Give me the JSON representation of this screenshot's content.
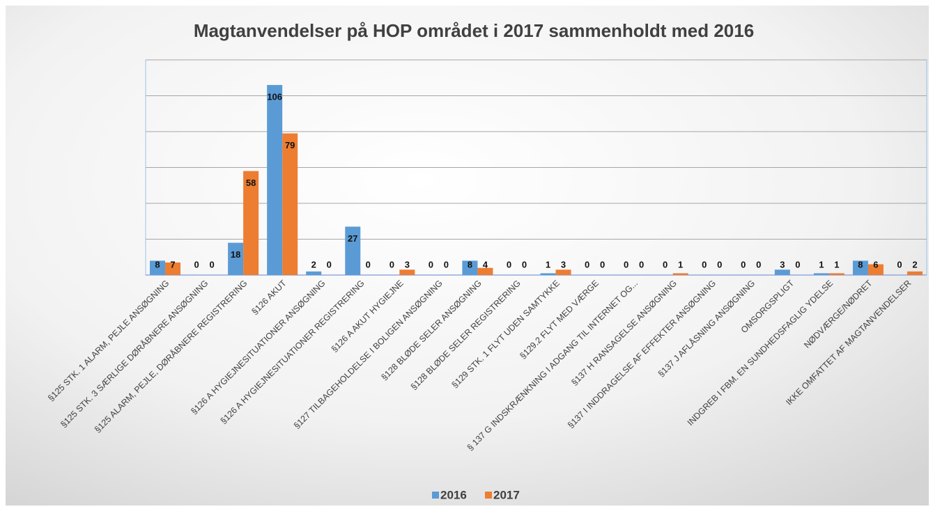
{
  "chart_data": {
    "type": "bar",
    "title": "Magtanvendelser på HOP området i 2017 sammenholdt med 2016",
    "categories": [
      "§125 STK. 1 ALARM, PEJLE ANSØGNING",
      "§125 STK. 3 SÆRLIGE DØRÅBNERE ANSØGNING",
      "§125 ALARM, PEJLE, DØRÅBNERE REGISTRERING",
      "§126 AKUT",
      "§126 A HYGIEJNESITUATIONER ANSØGNING",
      "§126 A HYGIEJNESITUATIONER REGISTRERING",
      "§126 A AKUT HYGIEJNE",
      "§127 TILBAGEHOLDELSE I BOLIGEN ANSØGNING",
      "§128 BLØDE SELER ANSØGNING",
      "§128 BLØDE SELER REGISTRERING",
      "§129 STK. 1 FLYT UDEN SAMTYKKE",
      "§129.2 FLYT MED VÆRGE",
      "§ 137 G INDSKRÆNKNING I ADGANG TIL INTERNET OG...",
      "§137 H RANSAGELSE ANSØGNING",
      "§137 I INDDRAGELSE AF EFFEKTER ANSØGNING",
      "§137 J AFLÅSNING ANSØGNING",
      "OMSORGSPLIGT",
      "INDGREB I FBM. EN SUNDHEDSFAGLIG YDELSE",
      "NØDVÆRGE/NØDRET",
      "IKKE OMFATTET AF MAGTANVENDELSER"
    ],
    "series": [
      {
        "name": "2016",
        "color": "#5b9bd5",
        "values": [
          8,
          0,
          18,
          106,
          2,
          27,
          0,
          0,
          8,
          0,
          1,
          0,
          0,
          0,
          0,
          0,
          3,
          1,
          8,
          0
        ]
      },
      {
        "name": "2017",
        "color": "#ed7d31",
        "values": [
          7,
          0,
          58,
          79,
          0,
          0,
          3,
          0,
          4,
          0,
          3,
          0,
          0,
          1,
          0,
          0,
          0,
          1,
          6,
          2
        ]
      }
    ],
    "ylim": [
      0,
      120
    ],
    "yticks": [
      0,
      20,
      40,
      60,
      80,
      100,
      120
    ],
    "grid": true,
    "legend": "bottom"
  }
}
